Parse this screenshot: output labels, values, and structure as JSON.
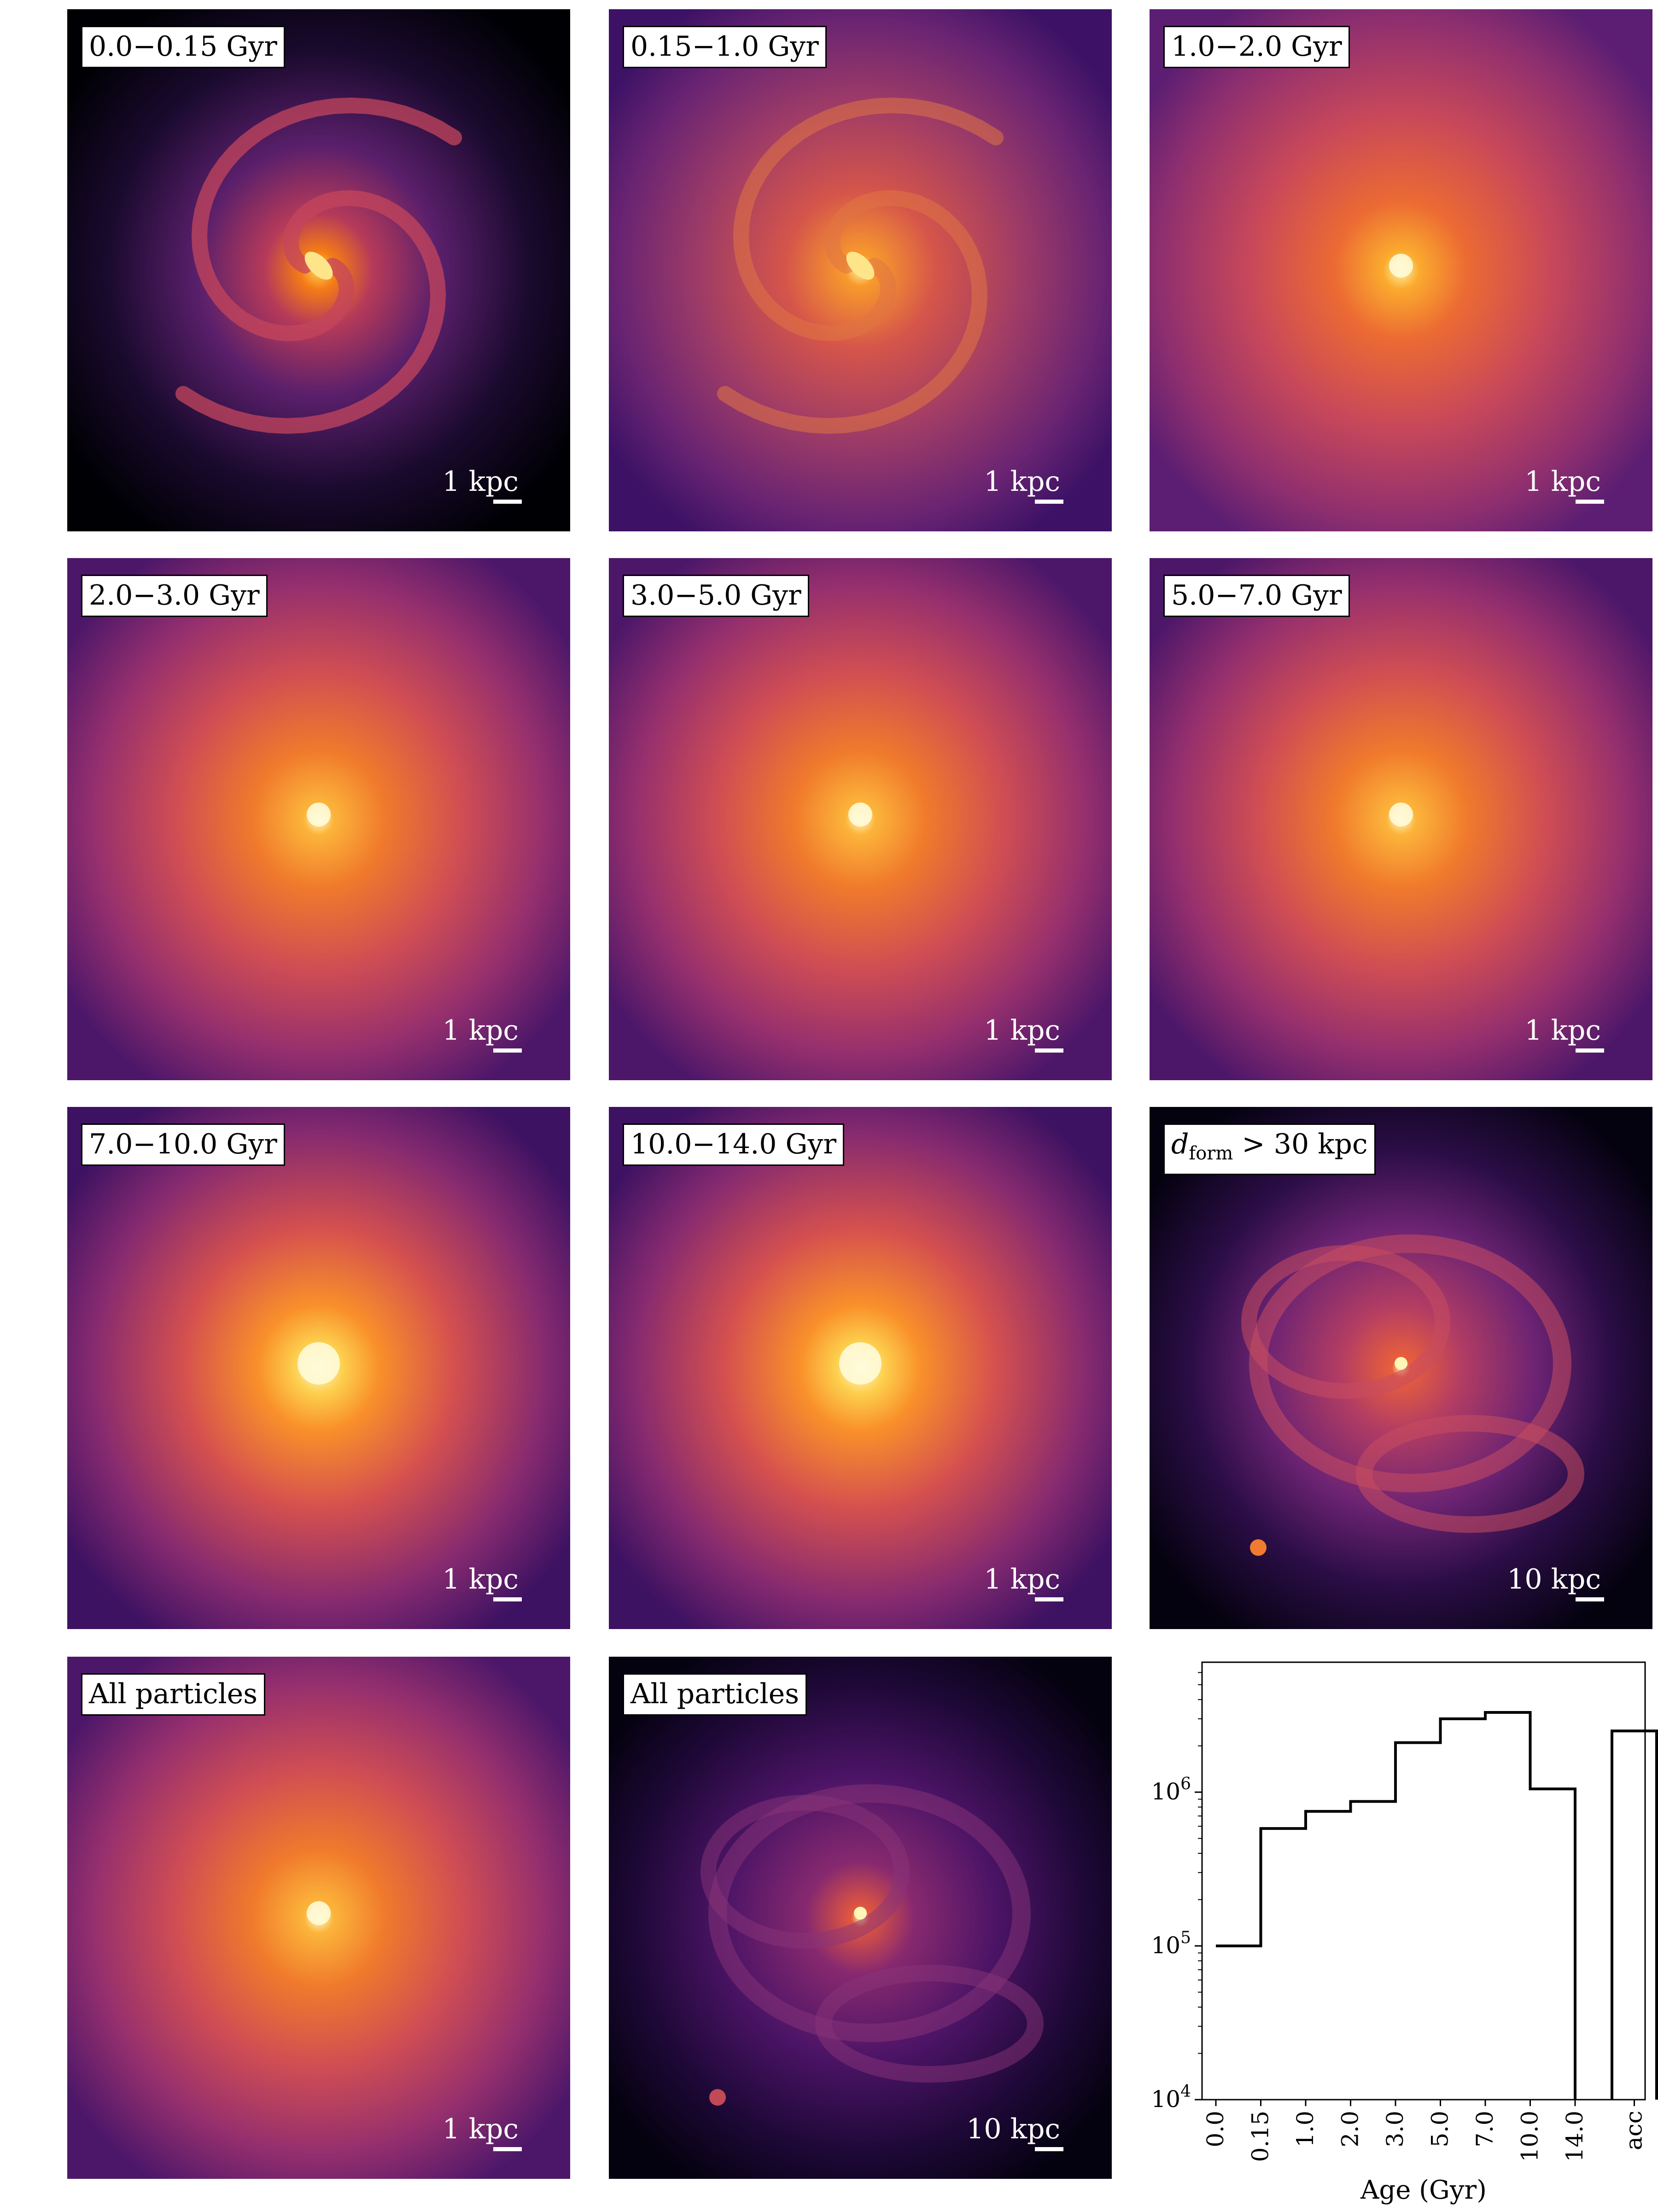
{
  "panels": [
    {
      "label": "0.0−0.15 Gyr",
      "scale_label": "1 kpc",
      "style": "spiral-young",
      "palette": "inferno"
    },
    {
      "label": "0.15−1.0 Gyr",
      "scale_label": "1 kpc",
      "style": "spiral",
      "palette": "inferno"
    },
    {
      "label": "1.0−2.0 Gyr",
      "scale_label": "1 kpc",
      "style": "smooth-soft",
      "palette": "inferno"
    },
    {
      "label": "2.0−3.0 Gyr",
      "scale_label": "1 kpc",
      "style": "smooth",
      "palette": "inferno"
    },
    {
      "label": "3.0−5.0 Gyr",
      "scale_label": "1 kpc",
      "style": "smooth",
      "palette": "inferno"
    },
    {
      "label": "5.0−7.0 Gyr",
      "scale_label": "1 kpc",
      "style": "smooth",
      "palette": "inferno"
    },
    {
      "label": "7.0−10.0 Gyr",
      "scale_label": "1 kpc",
      "style": "smooth-bright",
      "palette": "inferno"
    },
    {
      "label": "10.0−14.0 Gyr",
      "scale_label": "1 kpc",
      "style": "smooth-bright",
      "palette": "inferno"
    },
    {
      "label": "d_form > 30 kpc",
      "label_main": "d",
      "label_sub": "form",
      "label_rest": " > 30 kpc",
      "scale_label": "10 kpc",
      "style": "shells",
      "palette": "inferno"
    },
    {
      "label": "All particles",
      "scale_label": "1 kpc",
      "style": "smooth",
      "palette": "inferno"
    },
    {
      "label": "All particles",
      "scale_label": "10 kpc",
      "style": "shells-dim",
      "palette": "inferno"
    }
  ],
  "chart_data": {
    "type": "bar",
    "style": "step histogram",
    "categories": [
      "0.0",
      "0.15",
      "1.0",
      "2.0",
      "3.0",
      "5.0",
      "7.0",
      "10.0",
      "14.0",
      "acc"
    ],
    "bins": [
      {
        "range": "0.0-0.15",
        "value": 100000
      },
      {
        "range": "0.15-1.0",
        "value": 580000
      },
      {
        "range": "1.0-2.0",
        "value": 750000
      },
      {
        "range": "2.0-3.0",
        "value": 870000
      },
      {
        "range": "3.0-5.0",
        "value": 2100000
      },
      {
        "range": "5.0-7.0",
        "value": 3000000
      },
      {
        "range": "7.0-10.0",
        "value": 3300000
      },
      {
        "range": "10.0-14.0",
        "value": 1050000
      },
      {
        "range": "acc",
        "value": 2500000
      }
    ],
    "xlabel": "Age (Gyr)",
    "ylabel": "",
    "yscale": "log",
    "ylim": [
      10000,
      7000000
    ],
    "yticks": [
      {
        "value": 10000,
        "label": "10^4"
      },
      {
        "value": 100000,
        "label": "10^5"
      },
      {
        "value": 1000000,
        "label": "10^6"
      }
    ],
    "grid": false,
    "line_color": "#000000"
  }
}
